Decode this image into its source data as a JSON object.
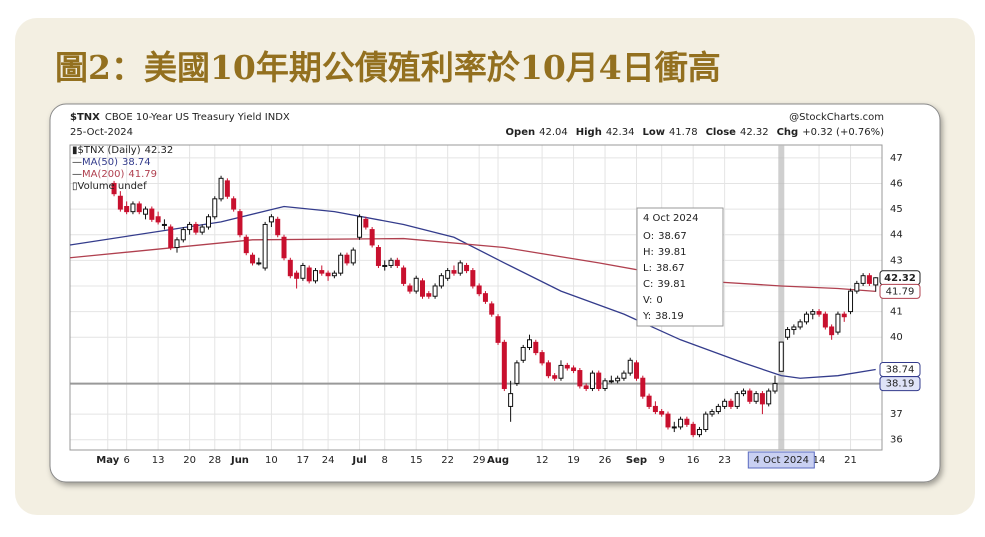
{
  "title": "圖2：美國10年期公債殖利率於10月4日衝高",
  "chart_data": {
    "type": "candlestick",
    "symbol": "$TNX",
    "name": "CBOE 10-Year US Treasury Yield INDX",
    "source": "@StockCharts.com",
    "date": "25-Oct-2024",
    "ohlc_labels": [
      "Open",
      "High",
      "Low",
      "Close",
      "Chg"
    ],
    "change": "+0.32 (+0.76%)",
    "legend": {
      "main": "$TNX (Daily)",
      "volume": "Volume undef"
    },
    "up_color": "#111111",
    "down_color": "#c8102e",
    "candles": [
      [
        46.0,
        46.1,
        45.5,
        45.6
      ],
      [
        45.5,
        45.7,
        44.9,
        45.0
      ],
      [
        45.1,
        45.3,
        44.8,
        44.9
      ],
      [
        44.9,
        45.3,
        44.8,
        45.2
      ],
      [
        45.2,
        45.3,
        44.8,
        44.9
      ],
      [
        44.8,
        45.1,
        44.6,
        45.0
      ],
      [
        45.0,
        45.1,
        44.5,
        44.6
      ],
      [
        44.7,
        44.9,
        44.4,
        44.5
      ],
      [
        44.4,
        44.6,
        44.2,
        44.4
      ],
      [
        44.3,
        44.4,
        43.4,
        43.5
      ],
      [
        43.5,
        43.9,
        43.3,
        43.8
      ],
      [
        43.8,
        44.3,
        43.7,
        44.2
      ],
      [
        44.2,
        44.5,
        44.0,
        44.4
      ],
      [
        44.4,
        44.5,
        44.0,
        44.1
      ],
      [
        44.1,
        44.4,
        44.0,
        44.3
      ],
      [
        44.3,
        44.8,
        44.2,
        44.7
      ],
      [
        44.7,
        45.5,
        44.6,
        45.4
      ],
      [
        45.4,
        46.3,
        45.3,
        46.2
      ],
      [
        46.1,
        46.2,
        45.4,
        45.5
      ],
      [
        45.4,
        45.5,
        44.9,
        45.0
      ],
      [
        44.9,
        45.0,
        43.9,
        44.0
      ],
      [
        43.9,
        44.0,
        43.2,
        43.3
      ],
      [
        43.2,
        43.3,
        42.8,
        42.9
      ],
      [
        42.9,
        43.1,
        42.8,
        42.9
      ],
      [
        42.7,
        44.5,
        42.6,
        44.4
      ],
      [
        44.5,
        44.8,
        44.3,
        44.7
      ],
      [
        44.6,
        44.7,
        43.9,
        44.0
      ],
      [
        43.9,
        44.0,
        43.0,
        43.1
      ],
      [
        43.0,
        43.1,
        42.3,
        42.4
      ],
      [
        42.5,
        42.6,
        41.9,
        42.3
      ],
      [
        42.3,
        42.9,
        42.2,
        42.8
      ],
      [
        42.7,
        42.8,
        42.1,
        42.2
      ],
      [
        42.2,
        42.7,
        42.1,
        42.6
      ],
      [
        42.6,
        42.8,
        42.4,
        42.5
      ],
      [
        42.5,
        42.6,
        42.2,
        42.4
      ],
      [
        42.4,
        42.6,
        42.3,
        42.5
      ],
      [
        42.5,
        43.3,
        42.4,
        43.2
      ],
      [
        43.2,
        43.3,
        42.8,
        42.9
      ],
      [
        42.9,
        43.5,
        42.8,
        43.4
      ],
      [
        43.9,
        44.8,
        43.8,
        44.7
      ],
      [
        44.6,
        44.7,
        44.2,
        44.3
      ],
      [
        44.2,
        44.3,
        43.5,
        43.6
      ],
      [
        43.5,
        43.6,
        42.7,
        42.8
      ],
      [
        42.8,
        43.0,
        42.6,
        42.8
      ],
      [
        42.8,
        43.1,
        42.7,
        43.0
      ],
      [
        43.0,
        43.1,
        42.7,
        42.8
      ],
      [
        42.7,
        42.8,
        42.0,
        42.1
      ],
      [
        42.0,
        42.1,
        41.7,
        41.8
      ],
      [
        41.8,
        42.4,
        41.7,
        42.3
      ],
      [
        42.2,
        42.3,
        41.5,
        41.6
      ],
      [
        41.7,
        41.8,
        41.5,
        41.6
      ],
      [
        41.6,
        42.1,
        41.5,
        42.0
      ],
      [
        42.0,
        42.5,
        41.9,
        42.4
      ],
      [
        42.3,
        42.7,
        42.2,
        42.6
      ],
      [
        42.6,
        42.8,
        42.4,
        42.5
      ],
      [
        42.5,
        43.0,
        42.4,
        42.9
      ],
      [
        42.8,
        42.9,
        42.5,
        42.6
      ],
      [
        42.6,
        42.7,
        41.9,
        42.0
      ],
      [
        42.0,
        42.1,
        41.6,
        41.7
      ],
      [
        41.7,
        41.8,
        41.3,
        41.4
      ],
      [
        41.3,
        41.4,
        40.8,
        40.9
      ],
      [
        40.8,
        40.9,
        39.7,
        39.8
      ],
      [
        39.8,
        39.9,
        37.9,
        38.0
      ],
      [
        37.3,
        38.3,
        36.7,
        37.8
      ],
      [
        38.2,
        39.1,
        38.1,
        39.0
      ],
      [
        39.1,
        39.7,
        39.0,
        39.6
      ],
      [
        39.6,
        40.1,
        39.5,
        39.9
      ],
      [
        39.8,
        39.9,
        39.3,
        39.4
      ],
      [
        39.4,
        39.5,
        38.9,
        39.0
      ],
      [
        39.0,
        39.1,
        38.4,
        38.5
      ],
      [
        38.5,
        38.6,
        38.3,
        38.4
      ],
      [
        38.4,
        39.1,
        38.3,
        38.9
      ],
      [
        38.9,
        39.0,
        38.7,
        38.8
      ],
      [
        38.8,
        38.9,
        38.6,
        38.7
      ],
      [
        38.7,
        38.8,
        38.0,
        38.1
      ],
      [
        38.1,
        38.2,
        37.9,
        38.0
      ],
      [
        38.0,
        38.7,
        37.9,
        38.6
      ],
      [
        38.6,
        38.7,
        37.9,
        38.0
      ],
      [
        38.0,
        38.4,
        37.9,
        38.3
      ],
      [
        38.3,
        38.5,
        38.2,
        38.3
      ],
      [
        38.3,
        38.5,
        38.2,
        38.4
      ],
      [
        38.4,
        38.7,
        38.3,
        38.6
      ],
      [
        38.6,
        39.2,
        38.5,
        39.1
      ],
      [
        39.0,
        39.1,
        38.3,
        38.4
      ],
      [
        38.4,
        38.5,
        37.6,
        37.7
      ],
      [
        37.7,
        37.8,
        37.2,
        37.3
      ],
      [
        37.3,
        37.5,
        37.0,
        37.1
      ],
      [
        37.1,
        37.2,
        36.9,
        37.0
      ],
      [
        37.0,
        37.1,
        36.4,
        36.5
      ],
      [
        36.5,
        36.7,
        36.3,
        36.5
      ],
      [
        36.5,
        36.9,
        36.4,
        36.8
      ],
      [
        36.8,
        36.9,
        36.5,
        36.6
      ],
      [
        36.6,
        36.7,
        36.1,
        36.2
      ],
      [
        36.2,
        36.5,
        36.1,
        36.4
      ],
      [
        36.4,
        37.1,
        36.3,
        37.0
      ],
      [
        37.0,
        37.2,
        36.9,
        37.1
      ],
      [
        37.1,
        37.4,
        37.0,
        37.3
      ],
      [
        37.3,
        37.6,
        37.2,
        37.5
      ],
      [
        37.5,
        37.6,
        37.2,
        37.3
      ],
      [
        37.3,
        37.9,
        37.2,
        37.8
      ],
      [
        37.8,
        38.0,
        37.7,
        37.9
      ],
      [
        37.9,
        38.0,
        37.4,
        37.5
      ],
      [
        37.5,
        37.9,
        37.4,
        37.8
      ],
      [
        37.8,
        37.9,
        37.0,
        37.4
      ],
      [
        37.4,
        38.0,
        37.3,
        37.9
      ],
      [
        37.9,
        38.5,
        37.8,
        38.19
      ],
      [
        38.67,
        39.81,
        38.67,
        39.81
      ],
      [
        40.0,
        40.4,
        39.9,
        40.3
      ],
      [
        40.3,
        40.5,
        40.1,
        40.4
      ],
      [
        40.4,
        40.7,
        40.3,
        40.6
      ],
      [
        40.6,
        41.0,
        40.5,
        40.9
      ],
      [
        40.9,
        41.1,
        40.7,
        41.0
      ],
      [
        41.0,
        41.1,
        40.8,
        40.9
      ],
      [
        40.9,
        41.0,
        40.3,
        40.4
      ],
      [
        40.4,
        40.5,
        39.9,
        40.1
      ],
      [
        40.2,
        41.0,
        40.1,
        40.9
      ],
      [
        40.9,
        41.0,
        40.6,
        40.8
      ],
      [
        41.0,
        41.9,
        40.9,
        41.8
      ],
      [
        41.8,
        42.2,
        41.7,
        42.1
      ],
      [
        42.1,
        42.5,
        42.0,
        42.4
      ],
      [
        42.4,
        42.5,
        42.0,
        42.1
      ],
      [
        42.04,
        42.34,
        41.78,
        42.32
      ]
    ],
    "series": [
      {
        "name": "MA(50)",
        "color": "#343c8c",
        "x": [
          -7,
          17,
          27,
          35,
          46,
          54,
          62,
          71,
          81,
          90,
          100,
          106,
          109,
          115,
          121
        ],
        "values": [
          43.6,
          44.5,
          45.1,
          44.9,
          44.4,
          43.9,
          42.9,
          41.8,
          40.9,
          39.9,
          39.0,
          38.5,
          38.4,
          38.5,
          38.74
        ]
      },
      {
        "name": "MA(200)",
        "color": "#b0404f",
        "x": [
          -7,
          22,
          46,
          62,
          77,
          93,
          106,
          115,
          121
        ],
        "values": [
          43.1,
          43.8,
          43.85,
          43.5,
          42.9,
          42.2,
          42.0,
          41.9,
          41.79
        ]
      }
    ],
    "tooltip": {
      "title": "4 Oct 2024",
      "labels": [
        "O:",
        "H:",
        "L:",
        "C:",
        "V:",
        "Y:"
      ],
      "volume": 0
    },
    "xlim": [
      -7,
      122
    ],
    "ylim": [
      35.6,
      47.5
    ],
    "yticks": [
      36,
      37,
      40,
      41,
      42,
      43,
      44,
      45,
      46,
      47
    ],
    "xticks": [
      {
        "value": -1,
        "label": "May"
      },
      {
        "value": 2,
        "label": "6"
      },
      {
        "value": 7,
        "label": "13"
      },
      {
        "value": 12,
        "label": "20"
      },
      {
        "value": 16,
        "label": "28"
      },
      {
        "value": 20,
        "label": "Jun"
      },
      {
        "value": 25,
        "label": "10"
      },
      {
        "value": 30,
        "label": "17"
      },
      {
        "value": 34,
        "label": "24"
      },
      {
        "value": 39,
        "label": "Jul"
      },
      {
        "value": 43,
        "label": "8"
      },
      {
        "value": 48,
        "label": "15"
      },
      {
        "value": 53,
        "label": "22"
      },
      {
        "value": 58,
        "label": "29"
      },
      {
        "value": 61,
        "label": "Aug"
      },
      {
        "value": 68,
        "label": "12"
      },
      {
        "value": 73,
        "label": "19"
      },
      {
        "value": 78,
        "label": "26"
      },
      {
        "value": 83,
        "label": "Sep"
      },
      {
        "value": 87,
        "label": "9"
      },
      {
        "value": 92,
        "label": "16"
      },
      {
        "value": 97,
        "label": "23"
      },
      {
        "value": 112,
        "label": "14"
      },
      {
        "value": 117,
        "label": "21"
      }
    ],
    "grid": true
  }
}
